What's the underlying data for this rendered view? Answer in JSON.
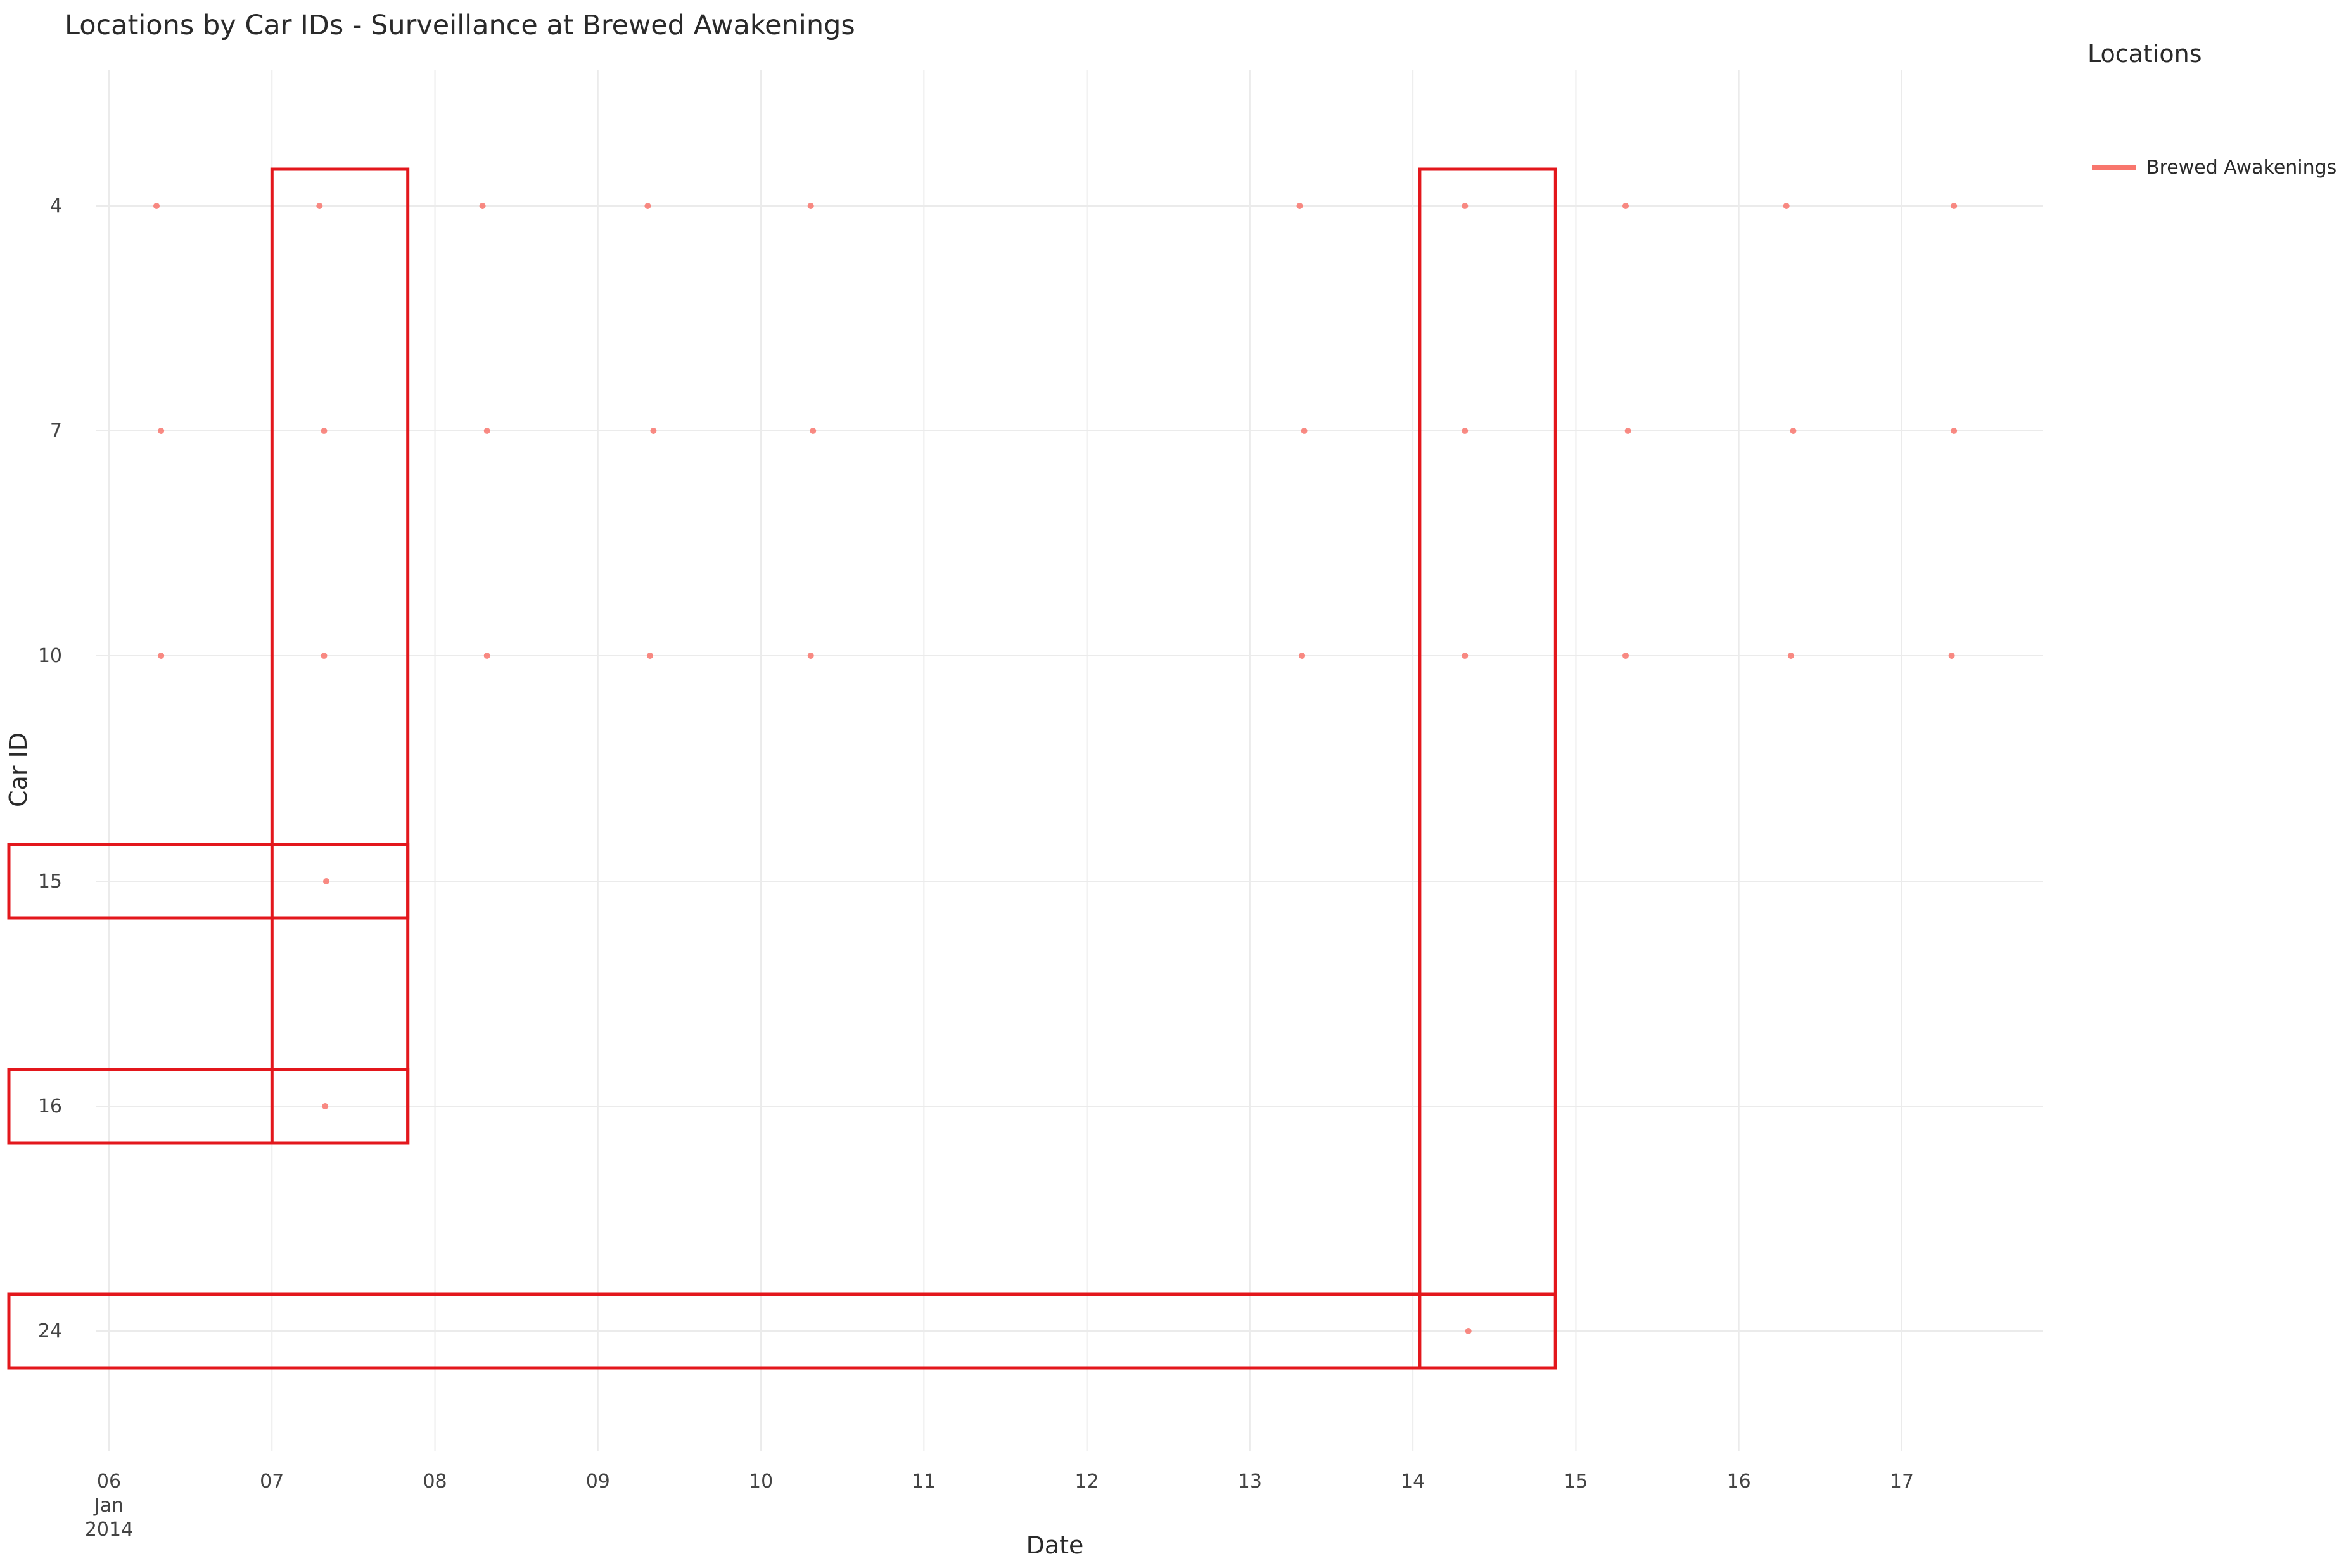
{
  "chart_data": {
    "type": "scatter",
    "title": "Locations by Car IDs - Surveillance at Brewed Awakenings",
    "xlabel": "Date",
    "ylabel": "Car ID",
    "x_ticks": [
      "06",
      "07",
      "08",
      "09",
      "10",
      "11",
      "12",
      "13",
      "14",
      "15",
      "16",
      "17"
    ],
    "x_tick_sub": [
      "Jan",
      "2014"
    ],
    "x_range": [
      "2014-01-05 20:00",
      "2014-01-17 22:00"
    ],
    "y_categories": [
      "4",
      "7",
      "10",
      "15",
      "16",
      "24"
    ],
    "grid": true,
    "legend": {
      "title": "Locations",
      "placement": "top-right",
      "entries": [
        "Brewed Awakenings"
      ]
    },
    "series": [
      {
        "name": "Brewed Awakenings",
        "color": "#f8766d",
        "points": [
          {
            "x": "2014-01-06 07:00",
            "y": "4"
          },
          {
            "x": "2014-01-07 07:00",
            "y": "4"
          },
          {
            "x": "2014-01-08 07:00",
            "y": "4"
          },
          {
            "x": "2014-01-09 07:20",
            "y": "4"
          },
          {
            "x": "2014-01-10 07:20",
            "y": "4"
          },
          {
            "x": "2014-01-13 07:20",
            "y": "4"
          },
          {
            "x": "2014-01-14 07:40",
            "y": "4"
          },
          {
            "x": "2014-01-15 07:20",
            "y": "4"
          },
          {
            "x": "2014-01-16 07:00",
            "y": "4"
          },
          {
            "x": "2014-01-17 07:40",
            "y": "4"
          },
          {
            "x": "2014-01-06 07:40",
            "y": "7"
          },
          {
            "x": "2014-01-07 07:40",
            "y": "7"
          },
          {
            "x": "2014-01-08 07:40",
            "y": "7"
          },
          {
            "x": "2014-01-09 08:10",
            "y": "7"
          },
          {
            "x": "2014-01-10 07:40",
            "y": "7"
          },
          {
            "x": "2014-01-13 08:00",
            "y": "7"
          },
          {
            "x": "2014-01-14 07:40",
            "y": "7"
          },
          {
            "x": "2014-01-15 07:40",
            "y": "7"
          },
          {
            "x": "2014-01-16 08:00",
            "y": "7"
          },
          {
            "x": "2014-01-17 07:40",
            "y": "7"
          },
          {
            "x": "2014-01-06 07:40",
            "y": "10"
          },
          {
            "x": "2014-01-07 07:40",
            "y": "10"
          },
          {
            "x": "2014-01-08 07:40",
            "y": "10"
          },
          {
            "x": "2014-01-09 07:40",
            "y": "10"
          },
          {
            "x": "2014-01-10 07:20",
            "y": "10"
          },
          {
            "x": "2014-01-13 07:40",
            "y": "10"
          },
          {
            "x": "2014-01-14 07:40",
            "y": "10"
          },
          {
            "x": "2014-01-15 07:20",
            "y": "10"
          },
          {
            "x": "2014-01-16 07:40",
            "y": "10"
          },
          {
            "x": "2014-01-17 07:20",
            "y": "10"
          },
          {
            "x": "2014-01-07 08:00",
            "y": "15"
          },
          {
            "x": "2014-01-07 07:50",
            "y": "16"
          },
          {
            "x": "2014-01-14 08:10",
            "y": "24"
          }
        ]
      }
    ],
    "annotations": [
      {
        "type": "rect",
        "x_range": [
          "2014-01-07 00:00",
          "2014-01-07 20:00"
        ],
        "y_range": [
          "4",
          "16"
        ]
      },
      {
        "type": "rect",
        "x_range": [
          "2014-01-14 01:00",
          "2014-01-14 21:00"
        ],
        "y_range": [
          "4",
          "24"
        ]
      },
      {
        "type": "rect",
        "x_range": [
          "axis",
          "2014-01-07 20:00"
        ],
        "y_range": [
          "15",
          "15"
        ]
      },
      {
        "type": "rect",
        "x_range": [
          "axis",
          "2014-01-07 20:00"
        ],
        "y_range": [
          "16",
          "16"
        ]
      },
      {
        "type": "rect",
        "x_range": [
          "axis",
          "2014-01-14 21:00"
        ],
        "y_range": [
          "24",
          "24"
        ]
      }
    ]
  }
}
